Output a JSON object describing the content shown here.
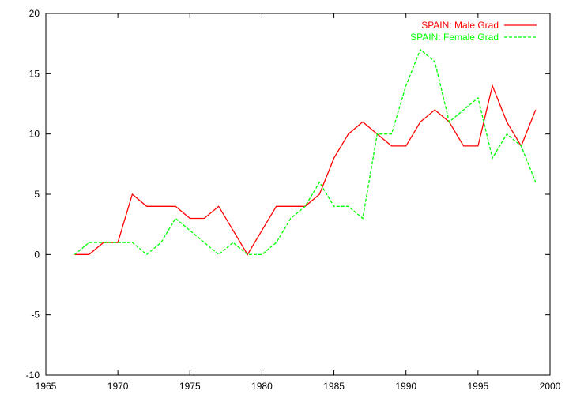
{
  "chart_data": {
    "type": "line",
    "title": "",
    "xlabel": "",
    "ylabel": "",
    "xlim": [
      1965,
      2000
    ],
    "ylim": [
      -10,
      20
    ],
    "xticks": [
      1965,
      1970,
      1975,
      1980,
      1985,
      1990,
      1995,
      2000
    ],
    "yticks": [
      -10,
      -5,
      0,
      5,
      10,
      15,
      20
    ],
    "grid": false,
    "legend": "top-right",
    "series": [
      {
        "name": "SPAIN: Male Grad",
        "color": "#ff0000",
        "dash": "solid",
        "x": [
          1967,
          1968,
          1969,
          1970,
          1971,
          1972,
          1973,
          1974,
          1975,
          1976,
          1977,
          1978,
          1979,
          1980,
          1981,
          1982,
          1983,
          1984,
          1985,
          1986,
          1987,
          1988,
          1989,
          1990,
          1991,
          1992,
          1993,
          1994,
          1995,
          1996,
          1997,
          1998,
          1999
        ],
        "y": [
          0,
          0,
          1,
          1,
          5,
          4,
          4,
          4,
          3,
          3,
          4,
          2,
          0,
          2,
          4,
          4,
          4,
          5,
          8,
          10,
          11,
          10,
          9,
          9,
          11,
          12,
          11,
          9,
          9,
          14,
          11,
          9,
          12
        ]
      },
      {
        "name": "SPAIN: Female Grad",
        "color": "#00ff00",
        "dash": "dashed",
        "x": [
          1967,
          1968,
          1969,
          1970,
          1971,
          1972,
          1973,
          1974,
          1975,
          1976,
          1977,
          1978,
          1979,
          1980,
          1981,
          1982,
          1983,
          1984,
          1985,
          1986,
          1987,
          1988,
          1989,
          1990,
          1991,
          1992,
          1993,
          1994,
          1995,
          1996,
          1997,
          1998,
          1999
        ],
        "y": [
          0,
          1,
          1,
          1,
          1,
          0,
          1,
          3,
          2,
          1,
          0,
          1,
          0,
          0,
          1,
          3,
          4,
          6,
          4,
          4,
          3,
          10,
          10,
          14,
          17,
          16,
          11,
          12,
          13,
          8,
          10,
          9,
          6
        ]
      }
    ]
  }
}
